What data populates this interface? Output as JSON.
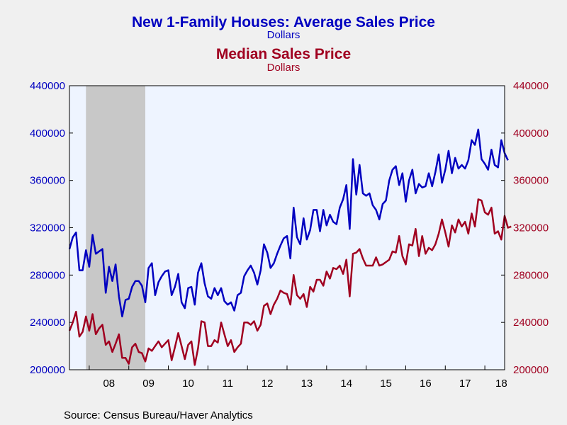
{
  "header": {
    "title1": "New 1-Family Houses: Average Sales Price",
    "sub1": "Dollars",
    "title2": "Median Sales Price",
    "sub2": "Dollars"
  },
  "source": "Source:  Census Bureau/Haver Analytics",
  "colors": {
    "average": "#0000c0",
    "median": "#a00020",
    "plot_bg": "#eef4ff",
    "recession": "#c8c8c8"
  },
  "chart_data": {
    "type": "line",
    "title": "New 1-Family Houses: Average Sales Price",
    "x_start": "2007-07",
    "frequency": "monthly",
    "xlim": [
      "2007-07",
      "2018-07"
    ],
    "x_tick_labels": [
      "08",
      "09",
      "10",
      "11",
      "12",
      "13",
      "14",
      "15",
      "16",
      "17",
      "18"
    ],
    "ylim": [
      200000,
      440000
    ],
    "y_ticks": [
      "200000",
      "240000",
      "280000",
      "320000",
      "360000",
      "400000",
      "440000"
    ],
    "shaded_region": [
      "2007-12",
      "2009-06"
    ],
    "series": [
      {
        "name": "New 1-Family Houses: Average Sales Price",
        "axis": "left",
        "values": [
          302000,
          312000,
          316000,
          284000,
          284000,
          301000,
          287000,
          314000,
          298000,
          300000,
          302000,
          265000,
          287000,
          275000,
          289000,
          262000,
          245000,
          259000,
          260000,
          270000,
          275000,
          275000,
          271000,
          257000,
          286000,
          290000,
          263000,
          274000,
          279000,
          283000,
          284000,
          263000,
          270000,
          281000,
          257000,
          252000,
          269000,
          270000,
          255000,
          282000,
          290000,
          273000,
          262000,
          260000,
          269000,
          263000,
          269000,
          258000,
          255000,
          257000,
          250000,
          263000,
          265000,
          279000,
          284000,
          288000,
          282000,
          272000,
          284000,
          306000,
          299000,
          286000,
          290000,
          298000,
          305000,
          311000,
          313000,
          294000,
          337000,
          312000,
          306000,
          328000,
          310000,
          318000,
          335000,
          335000,
          317000,
          335000,
          322000,
          331000,
          325000,
          323000,
          337000,
          344000,
          356000,
          319000,
          378000,
          348000,
          373000,
          349000,
          347000,
          349000,
          339000,
          335000,
          327000,
          340000,
          343000,
          360000,
          369000,
          372000,
          356000,
          366000,
          342000,
          360000,
          369000,
          349000,
          357000,
          354000,
          355000,
          366000,
          355000,
          367000,
          382000,
          358000,
          369000,
          385000,
          366000,
          379000,
          370000,
          373000,
          370000,
          377000,
          394000,
          390000,
          403000,
          378000,
          374000,
          369000,
          386000,
          373000,
          371000,
          394000,
          383000,
          377000
        ]
      },
      {
        "name": "Median Sales Price",
        "axis": "right",
        "values": [
          233000,
          240000,
          249000,
          228000,
          232000,
          245000,
          233000,
          247000,
          230000,
          235000,
          238000,
          221000,
          224000,
          215000,
          222000,
          230000,
          210000,
          210000,
          205000,
          219000,
          222000,
          215000,
          214000,
          207000,
          218000,
          216000,
          220000,
          224000,
          219000,
          222000,
          225000,
          208000,
          219000,
          231000,
          220000,
          209000,
          221000,
          224000,
          204000,
          218000,
          241000,
          240000,
          220000,
          220000,
          225000,
          223000,
          240000,
          230000,
          220000,
          225000,
          215000,
          219000,
          222000,
          240000,
          240000,
          238000,
          241000,
          233000,
          238000,
          254000,
          256000,
          247000,
          255000,
          260000,
          267000,
          265000,
          264000,
          255000,
          280000,
          263000,
          260000,
          264000,
          253000,
          270000,
          266000,
          276000,
          276000,
          271000,
          283000,
          277000,
          286000,
          285000,
          288000,
          281000,
          293000,
          262000,
          298000,
          299000,
          302000,
          294000,
          288000,
          288000,
          288000,
          295000,
          288000,
          289000,
          291000,
          293000,
          300000,
          299000,
          313000,
          296000,
          289000,
          306000,
          305000,
          319000,
          296000,
          313000,
          298000,
          303000,
          301000,
          306000,
          315000,
          327000,
          316000,
          304000,
          322000,
          316000,
          327000,
          321000,
          325000,
          315000,
          332000,
          321000,
          344000,
          343000,
          333000,
          331000,
          337000,
          315000,
          317000,
          310000,
          330000,
          320000,
          321000
        ]
      }
    ]
  }
}
